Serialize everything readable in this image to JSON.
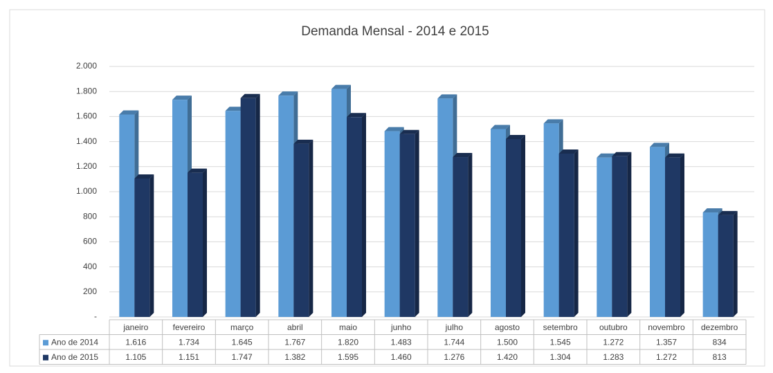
{
  "chart_data": {
    "type": "bar3d",
    "title": "Demanda Mensal - 2014 e 2015",
    "categories": [
      "janeiro",
      "fevereiro",
      "março",
      "abril",
      "maio",
      "junho",
      "julho",
      "agosto",
      "setembro",
      "outubro",
      "novembro",
      "dezembro"
    ],
    "series": [
      {
        "name": "Ano de 2014",
        "color": "#5b9bd5",
        "values": [
          1616,
          1734,
          1645,
          1767,
          1820,
          1483,
          1744,
          1500,
          1545,
          1272,
          1357,
          834
        ],
        "value_labels": [
          "1.616",
          "1.734",
          "1.645",
          "1.767",
          "1.820",
          "1.483",
          "1.744",
          "1.500",
          "1.545",
          "1.272",
          "1.357",
          "834"
        ]
      },
      {
        "name": "Ano de 2015",
        "color": "#1f3864",
        "values": [
          1105,
          1151,
          1747,
          1382,
          1595,
          1460,
          1276,
          1420,
          1304,
          1283,
          1272,
          813
        ],
        "value_labels": [
          "1.105",
          "1.151",
          "1.747",
          "1.382",
          "1.595",
          "1.460",
          "1.276",
          "1.420",
          "1.304",
          "1.283",
          "1.272",
          "813"
        ]
      }
    ],
    "ylim": [
      0,
      2000
    ],
    "yticks": [
      {
        "value": 0,
        "label": "-"
      },
      200,
      400,
      600,
      800,
      {
        "value": 1000,
        "label": "1.000"
      },
      {
        "value": 1200,
        "label": "1.200"
      },
      {
        "value": 1400,
        "label": "1.400"
      },
      {
        "value": 1600,
        "label": "1.600"
      },
      {
        "value": 1800,
        "label": "1.800"
      },
      {
        "value": 2000,
        "label": "2.000"
      }
    ],
    "grid": true
  }
}
